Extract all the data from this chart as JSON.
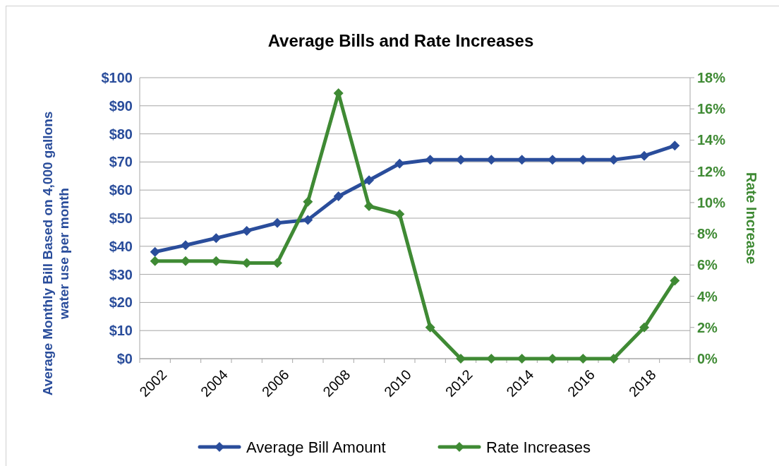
{
  "chart_data": {
    "type": "line",
    "title": "Average Bills and Rate Increases",
    "ylabel": "Average Monthly Bill Based on 4,000 gallons water use per month",
    "y2label": "Rate Increase",
    "categories": [
      "2002",
      null,
      "2004",
      null,
      "2006",
      null,
      "2008",
      null,
      "2010",
      null,
      "2012",
      null,
      "2014",
      null,
      "2016",
      null,
      "2018",
      null
    ],
    "series": [
      {
        "name": "Average Bill Amount",
        "color": "#2a4d9b",
        "values": [
          38.0,
          40.4,
          42.9,
          45.5,
          48.3,
          49.4,
          57.8,
          63.5,
          69.4,
          70.8,
          70.8,
          70.8,
          70.8,
          70.8,
          70.8,
          70.8,
          72.2,
          75.8
        ]
      },
      {
        "name": "Rate Increases",
        "color": "#3f8a34",
        "axis": "y2",
        "values": [
          6.25,
          6.25,
          6.25,
          6.13,
          6.13,
          10.05,
          17.0,
          9.77,
          9.26,
          2.0,
          0,
          0,
          0,
          0,
          0,
          0,
          2.0,
          5.0
        ]
      }
    ],
    "ylim": [
      0,
      100
    ],
    "yticks": [
      {
        "value": 0,
        "label": "$0"
      },
      {
        "value": 10,
        "label": "$10"
      },
      {
        "value": 20,
        "label": "$20"
      },
      {
        "value": 30,
        "label": "$30"
      },
      {
        "value": 40,
        "label": "$40"
      },
      {
        "value": 50,
        "label": "$50"
      },
      {
        "value": 60,
        "label": "$60"
      },
      {
        "value": 70,
        "label": "$70"
      },
      {
        "value": 80,
        "label": "$80"
      },
      {
        "value": 90,
        "label": "$90"
      },
      {
        "value": 100,
        "label": "$100"
      }
    ],
    "y2lim": [
      0,
      18
    ],
    "y2ticks": [
      {
        "value": 0,
        "label": "0%"
      },
      {
        "value": 2,
        "label": "2%"
      },
      {
        "value": 4,
        "label": "4%"
      },
      {
        "value": 6,
        "label": "6%"
      },
      {
        "value": 8,
        "label": "8%"
      },
      {
        "value": 10,
        "label": "10%"
      },
      {
        "value": 12,
        "label": "12%"
      },
      {
        "value": 14,
        "label": "14%"
      },
      {
        "value": 16,
        "label": "16%"
      },
      {
        "value": 18,
        "label": "18%"
      }
    ],
    "grid": "y",
    "legend": "bottom",
    "marker": "diamond",
    "line_style": "solid"
  }
}
